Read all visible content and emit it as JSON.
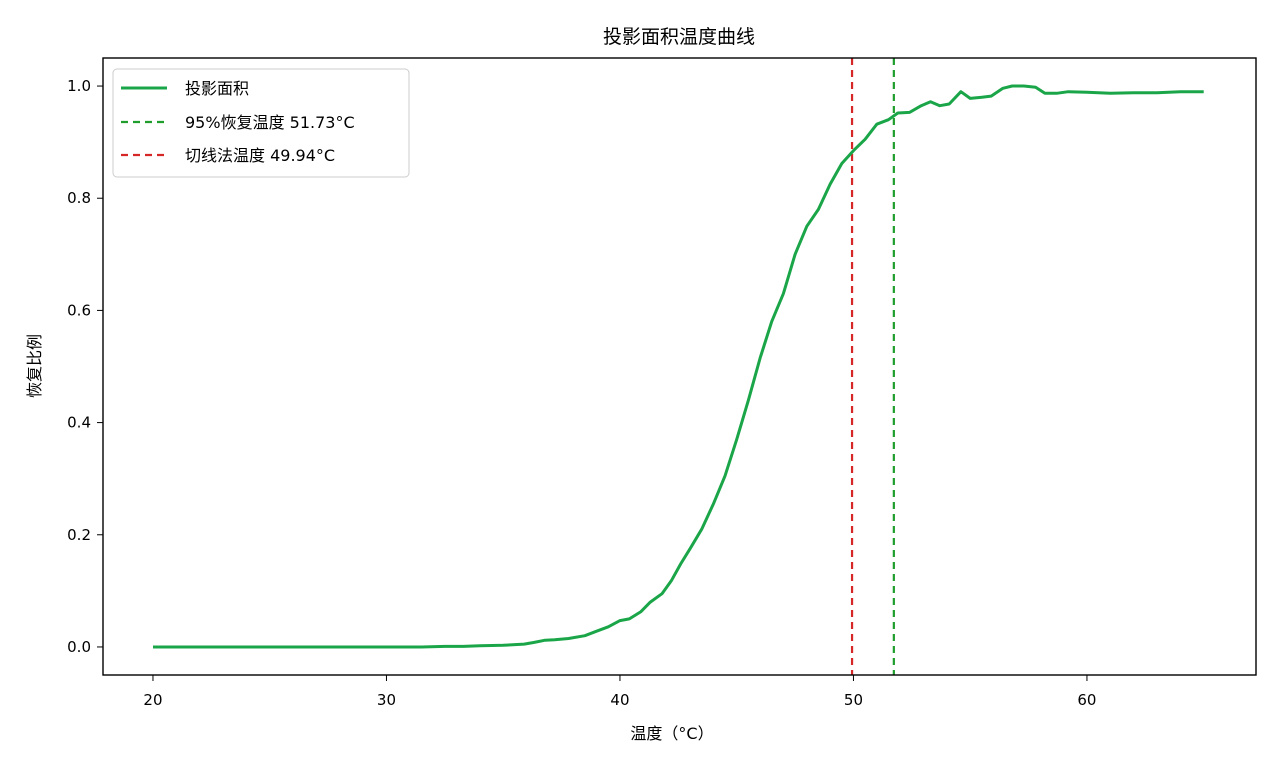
{
  "chart_data": {
    "type": "line",
    "title": "投影面积温度曲线",
    "xlabel": "温度（°C）",
    "ylabel": "恢复比例",
    "xlim": [
      17.86,
      67.24
    ],
    "ylim": [
      -0.05,
      1.05
    ],
    "xticks": [
      20,
      30,
      40,
      50,
      60
    ],
    "yticks": [
      0.0,
      0.2,
      0.4,
      0.6,
      0.8,
      1.0
    ],
    "xtick_labels": [
      "20",
      "30",
      "40",
      "50",
      "60"
    ],
    "ytick_labels": [
      "0.0",
      "0.2",
      "0.4",
      "0.6",
      "0.8",
      "1.0"
    ],
    "grid": false,
    "legend_position": "upper left",
    "series": [
      {
        "name": "投影面积",
        "style": "solid",
        "color": "#1aa648",
        "x": [
          20,
          22,
          24,
          26,
          28,
          30,
          31.5,
          32.5,
          33.3,
          34,
          35,
          35.9,
          36.3,
          36.8,
          37.2,
          37.8,
          38.5,
          39.0,
          39.5,
          40.0,
          40.4,
          40.9,
          41.3,
          41.8,
          42.2,
          42.6,
          43.0,
          43.5,
          44.0,
          44.5,
          45.0,
          45.5,
          46.0,
          46.5,
          47.0,
          47.5,
          48.0,
          48.5,
          49.0,
          49.5,
          50.0,
          50.5,
          51.0,
          51.5,
          51.9,
          52.4,
          52.9,
          53.3,
          53.7,
          54.1,
          54.6,
          55.0,
          55.5,
          55.9,
          56.4,
          56.8,
          57.3,
          57.8,
          58.2,
          58.7,
          59.2,
          60.0,
          61.0,
          62.0,
          63.0,
          64.0,
          65.0
        ],
        "values": [
          0.0,
          0.0,
          0.0,
          0.0,
          0.0,
          0.0,
          0.0,
          0.001,
          0.001,
          0.002,
          0.003,
          0.005,
          0.008,
          0.012,
          0.013,
          0.015,
          0.02,
          0.028,
          0.036,
          0.047,
          0.05,
          0.063,
          0.08,
          0.095,
          0.118,
          0.148,
          0.175,
          0.21,
          0.255,
          0.305,
          0.37,
          0.44,
          0.515,
          0.58,
          0.63,
          0.7,
          0.75,
          0.78,
          0.825,
          0.862,
          0.885,
          0.905,
          0.932,
          0.94,
          0.952,
          0.953,
          0.965,
          0.972,
          0.965,
          0.968,
          0.99,
          0.978,
          0.98,
          0.982,
          0.996,
          1.0,
          1.0,
          0.998,
          0.987,
          0.987,
          0.99,
          0.989,
          0.987,
          0.988,
          0.988,
          0.99,
          0.99
        ]
      },
      {
        "name": "95%恢复温度 51.73°C",
        "style": "dashed",
        "color": "#1f9e2d",
        "vline_x": 51.73
      },
      {
        "name": "切线法温度 49.94°C",
        "style": "dashed",
        "color": "#d62728",
        "vline_x": 49.94
      }
    ]
  },
  "legend": {
    "items": [
      {
        "label": "投影面积",
        "color": "#1aa648",
        "style": "solid"
      },
      {
        "label": "95%恢复温度 51.73°C",
        "color": "#1f9e2d",
        "style": "dashed"
      },
      {
        "label": "切线法温度 49.94°C",
        "color": "#d62728",
        "style": "dashed"
      }
    ]
  }
}
